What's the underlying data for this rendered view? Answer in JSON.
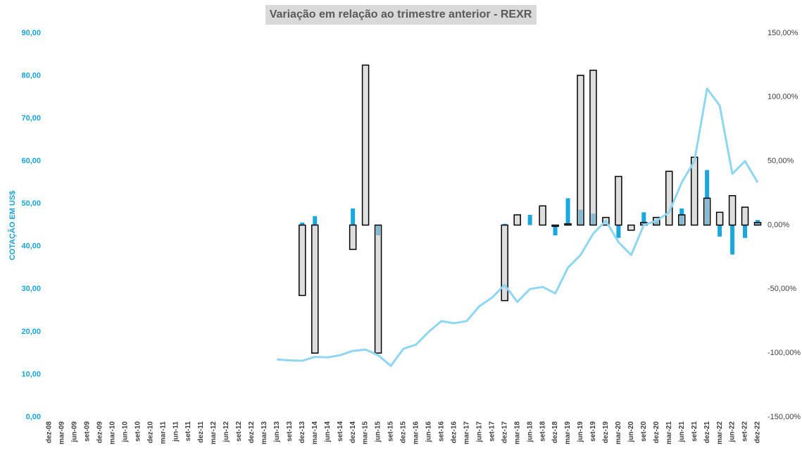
{
  "chart_data": {
    "type": "bar_line",
    "title": "Variação em relação ao trimestre anterior - REXR",
    "ylabel": "COTAÇÃO EM US$",
    "categories": [
      "dez-08",
      "mar-09",
      "jun-09",
      "set-09",
      "dez-09",
      "mar-10",
      "jun-10",
      "set-10",
      "dez-10",
      "mar-11",
      "jun-11",
      "set-11",
      "dez-11",
      "mar-12",
      "jun-12",
      "set-12",
      "dez-12",
      "mar-13",
      "jun-13",
      "set-13",
      "dez-13",
      "mar-14",
      "jun-14",
      "set-14",
      "dez-14",
      "mar-15",
      "jun-15",
      "set-15",
      "dez-15",
      "mar-16",
      "jun-16",
      "set-16",
      "dez-16",
      "mar-17",
      "jun-17",
      "set-17",
      "dez-17",
      "mar-18",
      "jun-18",
      "set-18",
      "dez-18",
      "mar-19",
      "jun-19",
      "set-19",
      "dez-19",
      "mar-20",
      "jun-20",
      "set-20",
      "dez-20",
      "mar-21",
      "jun-21",
      "set-21",
      "dez-21",
      "mar-22",
      "jun-22",
      "set-22",
      "dez-22"
    ],
    "ylim": [
      0,
      90
    ],
    "yticks": [
      {
        "value": 0,
        "label": "0,00"
      },
      {
        "value": 10,
        "label": "10,00"
      },
      {
        "value": 20,
        "label": "20,00"
      },
      {
        "value": 30,
        "label": "30,00"
      },
      {
        "value": 40,
        "label": "40,00"
      },
      {
        "value": 50,
        "label": "50,00"
      },
      {
        "value": 60,
        "label": "60,00"
      },
      {
        "value": 70,
        "label": "70,00"
      },
      {
        "value": 80,
        "label": "80,00"
      },
      {
        "value": 90,
        "label": "90,00"
      }
    ],
    "y2lim": [
      -150,
      150
    ],
    "y2ticks": [
      {
        "value": -150,
        "label": "-150,00%"
      },
      {
        "value": -100,
        "label": "-100,00%"
      },
      {
        "value": -50,
        "label": "-50,00%"
      },
      {
        "value": 0,
        "label": "0,00%"
      },
      {
        "value": 50,
        "label": "50,00%"
      },
      {
        "value": 100,
        "label": "100,00%"
      },
      {
        "value": 150,
        "label": "150,00%"
      }
    ],
    "series": [
      {
        "kind": "bar",
        "axis": "y2",
        "color": "#1aa7e0",
        "values": [
          null,
          null,
          null,
          null,
          null,
          null,
          null,
          null,
          null,
          null,
          null,
          null,
          null,
          null,
          null,
          null,
          null,
          null,
          null,
          null,
          2,
          7,
          null,
          null,
          13,
          null,
          -8,
          null,
          null,
          null,
          null,
          null,
          null,
          null,
          null,
          null,
          1,
          null,
          8,
          null,
          -8,
          21,
          12,
          9,
          null,
          -10,
          null,
          10,
          4,
          null,
          13,
          null,
          43,
          -9,
          -23,
          -10,
          4
        ]
      },
      {
        "kind": "outline_bar",
        "axis": "y2",
        "color": "#c8c8c8",
        "values": [
          null,
          null,
          null,
          null,
          null,
          null,
          null,
          null,
          null,
          null,
          null,
          null,
          null,
          null,
          null,
          null,
          null,
          null,
          null,
          null,
          -55,
          -100,
          null,
          null,
          -19,
          125,
          -100,
          null,
          null,
          null,
          null,
          null,
          null,
          null,
          null,
          null,
          -59,
          8,
          null,
          15,
          -1,
          1,
          117,
          121,
          6,
          38,
          -4,
          2,
          6,
          42,
          8,
          53,
          21,
          10,
          23,
          14,
          2
        ]
      },
      {
        "kind": "line",
        "axis": "y",
        "color": "#8ed6f2",
        "values": [
          null,
          null,
          null,
          null,
          null,
          null,
          null,
          null,
          null,
          null,
          null,
          null,
          null,
          null,
          null,
          null,
          null,
          null,
          13.5,
          13.3,
          13.2,
          14.1,
          14,
          14.5,
          15.5,
          15.8,
          14.5,
          12,
          16,
          17,
          20,
          22.5,
          22,
          22.5,
          26,
          28,
          31,
          27,
          30,
          30.5,
          29,
          35,
          38,
          43,
          46,
          41,
          38,
          45,
          46,
          48,
          55,
          60,
          77,
          73,
          57,
          60,
          55
        ]
      }
    ]
  }
}
